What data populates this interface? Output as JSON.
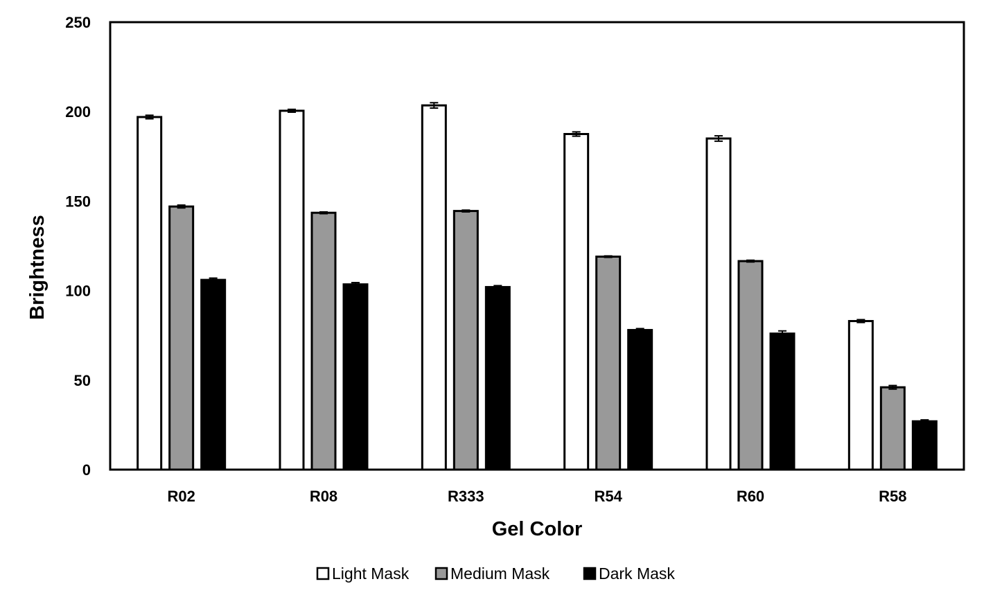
{
  "chart_data": {
    "type": "bar",
    "title": "",
    "xlabel": "Gel Color",
    "ylabel": "Brightness",
    "ylim": [
      0,
      250
    ],
    "yticks": [
      0,
      50,
      100,
      150,
      200,
      250
    ],
    "categories": [
      "R02",
      "R08",
      "R333",
      "R54",
      "R60",
      "R58"
    ],
    "series": [
      {
        "name": "Light Mask",
        "color": "#ffffff",
        "values": [
          197,
          200.5,
          203.5,
          187.5,
          185,
          83
        ],
        "errors": [
          1,
          0.8,
          1.5,
          1.2,
          1.5,
          0.8
        ]
      },
      {
        "name": "Medium Mask",
        "color": "#999999",
        "values": [
          147,
          143.5,
          144.5,
          119,
          116.5,
          46
        ],
        "errors": [
          0.8,
          0.5,
          0.5,
          0.4,
          0.5,
          1
        ]
      },
      {
        "name": "Dark Mask",
        "color": "#000000",
        "values": [
          106,
          103.5,
          102,
          78,
          76,
          27
        ],
        "errors": [
          1,
          1,
          0.8,
          0.8,
          1.5,
          0.8
        ]
      }
    ],
    "legend_position": "bottom",
    "grid": false,
    "error_bars": true
  }
}
